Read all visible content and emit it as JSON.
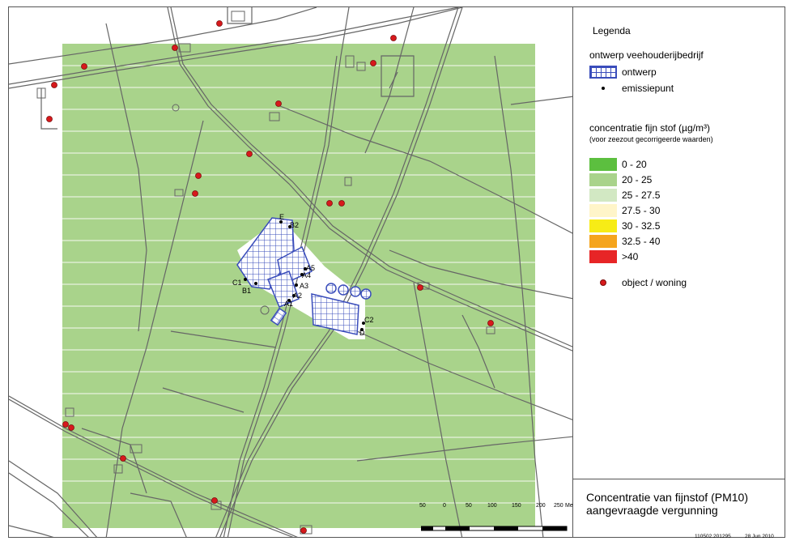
{
  "legend": {
    "title": "Legenda",
    "section1": "ontwerp veehouderijbedrijf",
    "items1": [
      {
        "label": "ontwerp",
        "symbol": "hatch-blue-icon"
      },
      {
        "label": "emissiepunt",
        "symbol": "black-dot-icon"
      }
    ],
    "section2": "concentratie fijn stof (µg/m³)",
    "section2_note": "(voor zeezout gecorrigeerde waarden)",
    "classes": [
      {
        "label": "0 - 20",
        "color": "#5cbf3f"
      },
      {
        "label": "20 - 25",
        "color": "#a9d38b"
      },
      {
        "label": "25 - 27.5",
        "color": "#d2e8c3"
      },
      {
        "label": "27.5 - 30",
        "color": "#fff5c9"
      },
      {
        "label": "30 - 32.5",
        "color": "#f7ec16"
      },
      {
        "label": "32.5 - 40",
        "color": "#f5a51d"
      },
      {
        "label": ">40",
        "color": "#e72526"
      }
    ],
    "object_label": "object / woning",
    "object_color": "#d7191c"
  },
  "map_title": {
    "line1": "Concentratie van fijnstof (PM10)",
    "line2": "aangevraagde vergunning"
  },
  "meta": {
    "code": "110502.201295",
    "date": "28 Jun 2010"
  },
  "scalebar": {
    "ticks": [
      "50",
      "0",
      "50",
      "100",
      "150",
      "200",
      "250"
    ],
    "unit": "Meters"
  },
  "emission_points": [
    "A1",
    "A2",
    "A3",
    "A4",
    "A5",
    "B1",
    "B2",
    "C1",
    "C2",
    "D",
    "E"
  ],
  "colors": {
    "grid_fill": "#a9d38b",
    "road": "#666666",
    "building_outline": "#3a4dbb"
  }
}
